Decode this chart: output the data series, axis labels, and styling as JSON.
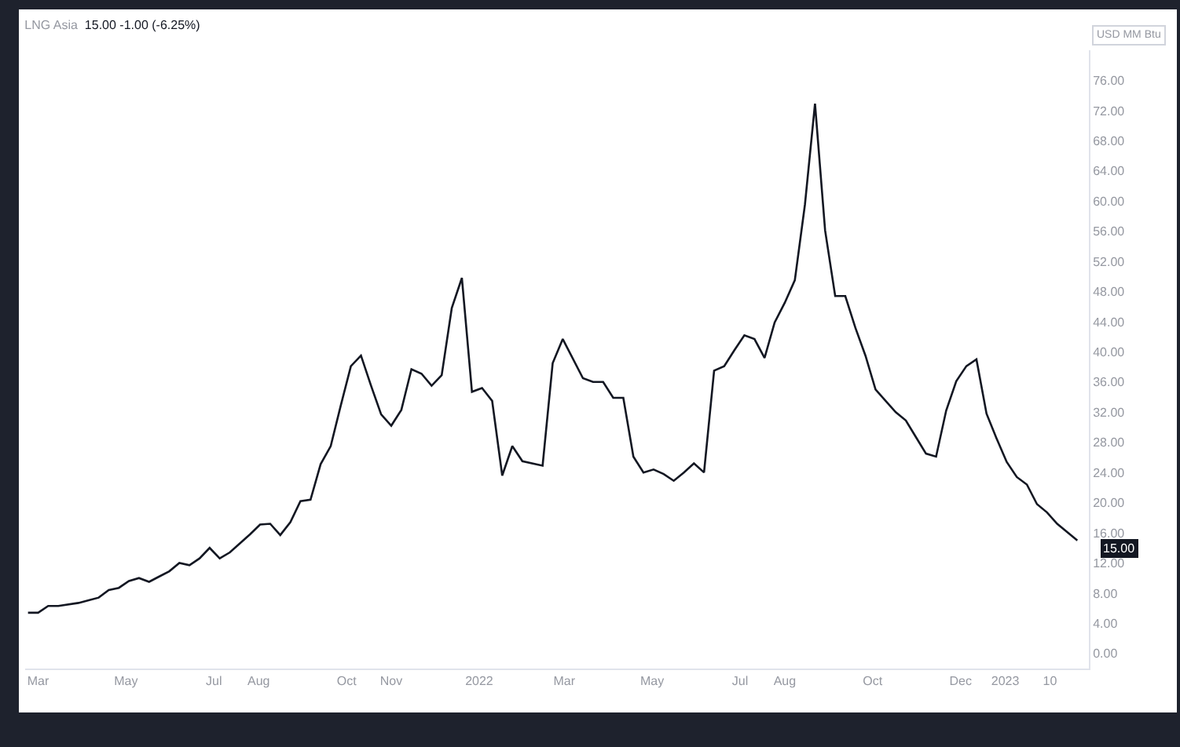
{
  "chart_data": {
    "type": "line",
    "title": "LNG Asia",
    "subtitle": "15.00 -1.00 (-6.25%)",
    "ylabel": "USD MM Btu",
    "x": [
      "2021-02-22",
      "2021-03-01",
      "2021-03-08",
      "2021-03-15",
      "2021-03-29",
      "2021-04-12",
      "2021-04-19",
      "2021-04-26",
      "2021-05-03",
      "2021-05-10",
      "2021-05-17",
      "2021-05-24",
      "2021-05-31",
      "2021-06-07",
      "2021-06-14",
      "2021-06-21",
      "2021-06-28",
      "2021-07-05",
      "2021-07-12",
      "2021-07-19",
      "2021-07-26",
      "2021-08-02",
      "2021-08-09",
      "2021-08-16",
      "2021-08-23",
      "2021-08-30",
      "2021-09-06",
      "2021-09-13",
      "2021-09-20",
      "2021-09-27",
      "2021-10-04",
      "2021-10-11",
      "2021-10-18",
      "2021-10-25",
      "2021-11-01",
      "2021-11-08",
      "2021-11-15",
      "2021-11-22",
      "2021-11-29",
      "2021-12-06",
      "2021-12-13",
      "2021-12-20",
      "2021-12-27",
      "2022-01-03",
      "2022-01-10",
      "2022-01-17",
      "2022-01-24",
      "2022-01-31",
      "2022-02-14",
      "2022-02-21",
      "2022-02-28",
      "2022-03-14",
      "2022-03-21",
      "2022-03-28",
      "2022-04-04",
      "2022-04-11",
      "2022-04-18",
      "2022-04-25",
      "2022-05-02",
      "2022-05-09",
      "2022-05-16",
      "2022-05-23",
      "2022-05-30",
      "2022-06-06",
      "2022-06-13",
      "2022-06-20",
      "2022-06-27",
      "2022-07-04",
      "2022-07-11",
      "2022-07-18",
      "2022-07-25",
      "2022-08-01",
      "2022-08-08",
      "2022-08-15",
      "2022-08-22",
      "2022-08-29",
      "2022-09-05",
      "2022-09-12",
      "2022-09-19",
      "2022-09-26",
      "2022-10-03",
      "2022-10-10",
      "2022-10-17",
      "2022-10-24",
      "2022-10-31",
      "2022-11-07",
      "2022-11-14",
      "2022-11-21",
      "2022-11-28",
      "2022-12-05",
      "2022-12-12",
      "2022-12-19",
      "2022-12-26",
      "2023-01-02",
      "2023-01-09",
      "2023-01-16",
      "2023-01-23",
      "2023-01-30",
      "2023-02-06",
      "2023-02-20"
    ],
    "series": [
      {
        "color": "#131722",
        "values": [
          5.4,
          5.4,
          6.3,
          6.3,
          6.7,
          7.4,
          8.4,
          8.7,
          9.6,
          10.0,
          9.5,
          10.2,
          10.9,
          12.0,
          11.7,
          12.6,
          14.0,
          12.6,
          13.4,
          14.6,
          15.8,
          17.1,
          17.2,
          15.7,
          17.4,
          20.2,
          20.4,
          25.1,
          27.5,
          32.9,
          38.1,
          39.5,
          35.5,
          31.7,
          30.2,
          32.3,
          37.7,
          37.1,
          35.5,
          36.9,
          45.8,
          49.8,
          34.7,
          35.2,
          33.5,
          23.6,
          27.5,
          25.5,
          24.9,
          38.5,
          41.7,
          36.5,
          36.0,
          36.0,
          33.9,
          33.9,
          26.1,
          24.0,
          24.4,
          23.8,
          22.9,
          24.0,
          25.2,
          24.0,
          37.5,
          38.1,
          40.2,
          42.2,
          41.7,
          39.2,
          43.9,
          46.5,
          49.5,
          59.5,
          72.9,
          56.1,
          47.4,
          47.4,
          43.2,
          39.5,
          35.0,
          33.5,
          32.0,
          30.9,
          28.7,
          26.5,
          26.1,
          32.2,
          36.1,
          38.1,
          39.0,
          31.8,
          28.5,
          25.4,
          23.4,
          22.4,
          19.8,
          18.7,
          17.2,
          15.0
        ]
      }
    ],
    "xlim": [
      "2021-02-20",
      "2023-02-28"
    ],
    "xticks": [
      {
        "value": "2021-03-01",
        "label": "Mar"
      },
      {
        "value": "2021-05-01",
        "label": "May"
      },
      {
        "value": "2021-07-01",
        "label": "Jul"
      },
      {
        "value": "2021-08-01",
        "label": "Aug"
      },
      {
        "value": "2021-10-01",
        "label": "Oct"
      },
      {
        "value": "2021-11-01",
        "label": "Nov"
      },
      {
        "value": "2022-01-01",
        "label": "2022"
      },
      {
        "value": "2022-03-01",
        "label": "Mar"
      },
      {
        "value": "2022-05-01",
        "label": "May"
      },
      {
        "value": "2022-07-01",
        "label": "Jul"
      },
      {
        "value": "2022-08-01",
        "label": "Aug"
      },
      {
        "value": "2022-10-01",
        "label": "Oct"
      },
      {
        "value": "2022-12-01",
        "label": "Dec"
      },
      {
        "value": "2023-01-01",
        "label": "2023"
      },
      {
        "value": "2023-02-01",
        "label": "10"
      }
    ],
    "ylim": [
      -2,
      80
    ],
    "yticks": [
      {
        "value": 0,
        "label": "0.00"
      },
      {
        "value": 4,
        "label": "4.00"
      },
      {
        "value": 8,
        "label": "8.00"
      },
      {
        "value": 12,
        "label": "12.00"
      },
      {
        "value": 16,
        "label": "16.00"
      },
      {
        "value": 20,
        "label": "20.00"
      },
      {
        "value": 24,
        "label": "24.00"
      },
      {
        "value": 28,
        "label": "28.00"
      },
      {
        "value": 32,
        "label": "32.00"
      },
      {
        "value": 36,
        "label": "36.00"
      },
      {
        "value": 40,
        "label": "40.00"
      },
      {
        "value": 44,
        "label": "44.00"
      },
      {
        "value": 48,
        "label": "48.00"
      },
      {
        "value": 52,
        "label": "52.00"
      },
      {
        "value": 56,
        "label": "56.00"
      },
      {
        "value": 60,
        "label": "60.00"
      },
      {
        "value": 64,
        "label": "64.00"
      },
      {
        "value": 68,
        "label": "68.00"
      },
      {
        "value": 72,
        "label": "72.00"
      },
      {
        "value": 76,
        "label": "76.00"
      }
    ],
    "annotations": [
      {
        "text": "15.00",
        "x": "2023-02-20",
        "y": 15
      }
    ],
    "grid": false,
    "marker": "none",
    "line_style": "solid"
  }
}
